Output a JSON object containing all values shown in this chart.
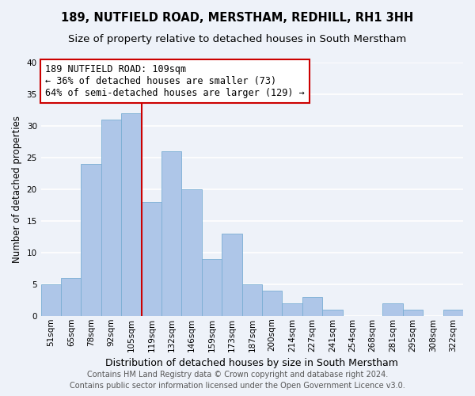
{
  "title": "189, NUTFIELD ROAD, MERSTHAM, REDHILL, RH1 3HH",
  "subtitle": "Size of property relative to detached houses in South Merstham",
  "xlabel": "Distribution of detached houses by size in South Merstham",
  "ylabel": "Number of detached properties",
  "bar_labels": [
    "51sqm",
    "65sqm",
    "78sqm",
    "92sqm",
    "105sqm",
    "119sqm",
    "132sqm",
    "146sqm",
    "159sqm",
    "173sqm",
    "187sqm",
    "200sqm",
    "214sqm",
    "227sqm",
    "241sqm",
    "254sqm",
    "268sqm",
    "281sqm",
    "295sqm",
    "308sqm",
    "322sqm"
  ],
  "bar_values": [
    5,
    6,
    24,
    31,
    32,
    18,
    26,
    20,
    9,
    13,
    5,
    4,
    2,
    3,
    1,
    0,
    0,
    2,
    1,
    0,
    1
  ],
  "bar_color": "#aec6e8",
  "bar_edge_color": "#7aaed4",
  "vline_x": 4.5,
  "vline_color": "#cc0000",
  "annotation_title": "189 NUTFIELD ROAD: 109sqm",
  "annotation_line1": "← 36% of detached houses are smaller (73)",
  "annotation_line2": "64% of semi-detached houses are larger (129) →",
  "annotation_box_color": "#ffffff",
  "annotation_box_edgecolor": "#cc0000",
  "ylim": [
    0,
    40
  ],
  "yticks": [
    0,
    5,
    10,
    15,
    20,
    25,
    30,
    35,
    40
  ],
  "footer_line1": "Contains HM Land Registry data © Crown copyright and database right 2024.",
  "footer_line2": "Contains public sector information licensed under the Open Government Licence v3.0.",
  "background_color": "#eef2f9",
  "grid_color": "#ffffff",
  "title_fontsize": 10.5,
  "subtitle_fontsize": 9.5,
  "xlabel_fontsize": 9,
  "ylabel_fontsize": 8.5,
  "tick_fontsize": 7.5,
  "footer_fontsize": 7,
  "annotation_fontsize": 8.5
}
